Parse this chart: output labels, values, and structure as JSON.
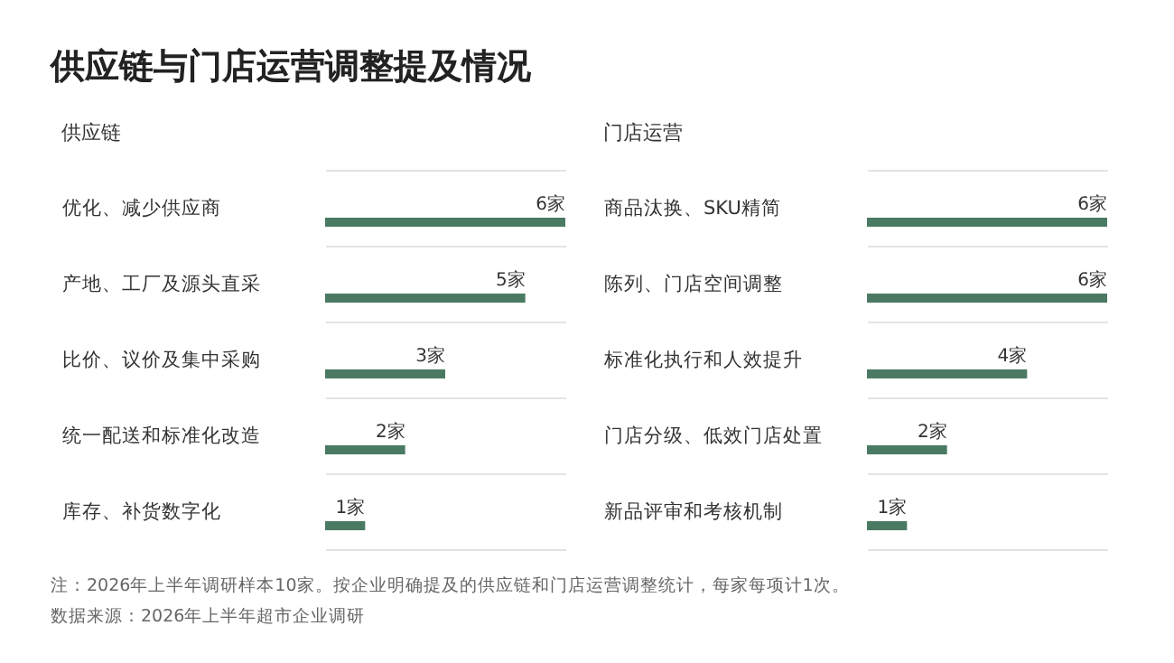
{
  "chart_data": [
    {
      "type": "bar",
      "orientation": "horizontal",
      "title": "供应链与门店运营调整提及情况",
      "subtitle": "供应链",
      "categories": [
        "优化、减少供应商",
        "产地、工厂及源头直采",
        "比价、议价及集中采购",
        "统一配送和标准化改造",
        "库存、补货数字化"
      ],
      "values": [
        6,
        5,
        3,
        2,
        1
      ],
      "value_labels": [
        "6家",
        "5家",
        "3家",
        "2家",
        "1家"
      ],
      "color": "#4a7a62",
      "grid": "y"
    },
    {
      "type": "bar",
      "orientation": "horizontal",
      "subtitle": "门店运营",
      "categories": [
        "商品汰换、SKU精简",
        "陈列、门店空间调整",
        "标准化执行和人效提升",
        "门店分级、低效门店处置",
        "新品评审和考核机制"
      ],
      "values": [
        6,
        6,
        4,
        2,
        1
      ],
      "value_labels": [
        "6家",
        "6家",
        "4家",
        "2家",
        "1家"
      ],
      "color": "#4a7a62",
      "grid": "y",
      "annotations": [
        "注：2026年上半年调研样本10家。按企业明确提及的供应链和门店运营调整统计，每家每项计1次。",
        "数据来源：2026年上半年超市企业调研"
      ]
    }
  ]
}
